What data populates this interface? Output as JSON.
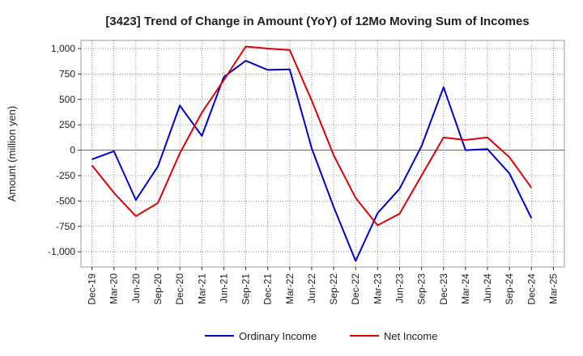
{
  "chart_data": {
    "type": "line",
    "title": "[3423]  Trend of Change in Amount (YoY) of 12Mo Moving Sum of Incomes",
    "xlabel": "",
    "ylabel": "Amount (million yen)",
    "categories": [
      "Dec-19",
      "Mar-20",
      "Jun-20",
      "Sep-20",
      "Dec-20",
      "Mar-21",
      "Jun-21",
      "Sep-21",
      "Dec-21",
      "Mar-22",
      "Jun-22",
      "Sep-22",
      "Dec-22",
      "Mar-23",
      "Jun-23",
      "Sep-23",
      "Dec-23",
      "Mar-24",
      "Jun-24",
      "Sep-24",
      "Dec-24",
      "Mar-25"
    ],
    "ylim": [
      -1150,
      1080
    ],
    "yticks": [
      1000,
      750,
      500,
      250,
      0,
      -250,
      -500,
      -750,
      -1000
    ],
    "ytick_labels": [
      "1,000",
      "750",
      "500",
      "250",
      "0",
      "-250",
      "-500",
      "-750",
      "-1,000"
    ],
    "grid": true,
    "legend_position": "bottom",
    "series": [
      {
        "name": "Ordinary Income",
        "color": "#0000cc",
        "values": [
          -90,
          -10,
          -490,
          -160,
          440,
          140,
          720,
          880,
          790,
          795,
          20,
          -560,
          -1090,
          -620,
          -380,
          40,
          620,
          0,
          10,
          -230,
          -670,
          null
        ]
      },
      {
        "name": "Net Income",
        "color": "#dd0000",
        "values": [
          -150,
          -420,
          -650,
          -520,
          -30,
          370,
          690,
          1020,
          1000,
          985,
          490,
          -50,
          -470,
          -740,
          -625,
          -250,
          125,
          100,
          125,
          -70,
          -370,
          null
        ]
      }
    ]
  }
}
